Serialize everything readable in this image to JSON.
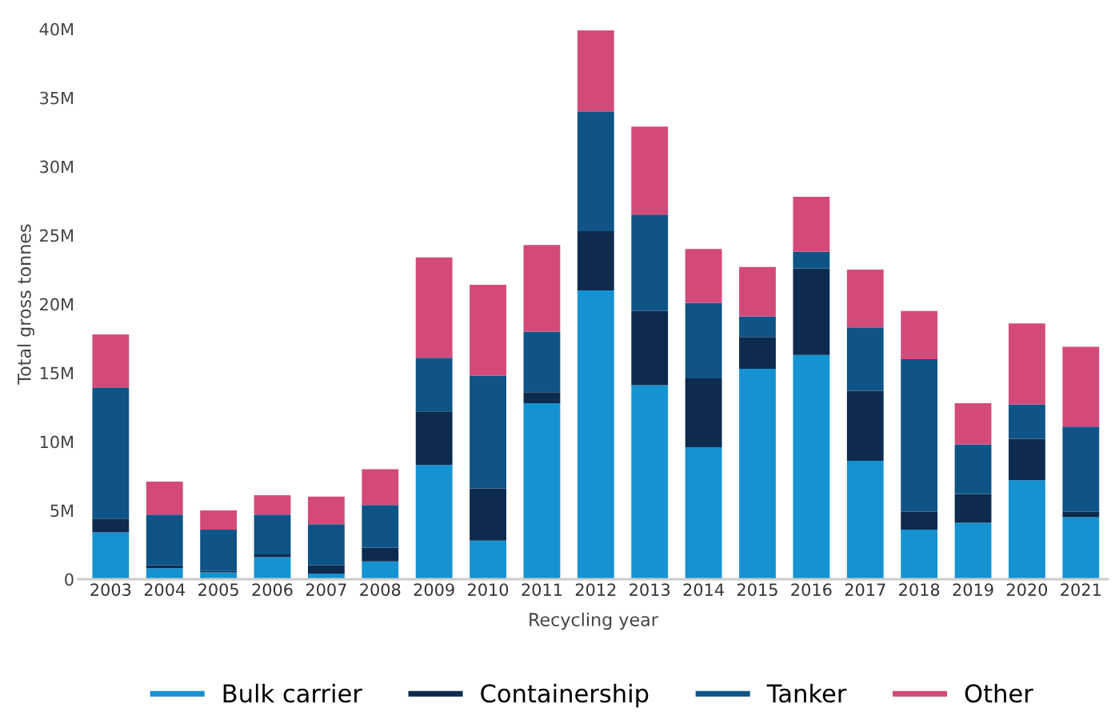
{
  "chart_data": {
    "type": "bar",
    "stacked": true,
    "xlabel": "Recycling year",
    "ylabel": "Total gross tonnes",
    "categories": [
      "2003",
      "2004",
      "2005",
      "2006",
      "2007",
      "2008",
      "2009",
      "2010",
      "2011",
      "2012",
      "2013",
      "2014",
      "2015",
      "2016",
      "2017",
      "2018",
      "2019",
      "2020",
      "2021"
    ],
    "series": [
      {
        "name": "Bulk carrier",
        "color": "#1592d2",
        "values": [
          3.4,
          0.8,
          0.5,
          1.6,
          0.4,
          1.3,
          8.3,
          2.8,
          12.8,
          21.0,
          14.1,
          9.6,
          15.3,
          16.3,
          8.6,
          3.6,
          4.1,
          7.2,
          4.5
        ]
      },
      {
        "name": "Containership",
        "color": "#0d2b4e",
        "values": [
          1.0,
          0.2,
          0.1,
          0.2,
          0.6,
          1.0,
          3.9,
          3.8,
          0.8,
          4.3,
          5.4,
          5.0,
          2.3,
          6.3,
          5.1,
          1.3,
          2.1,
          3.0,
          0.4
        ]
      },
      {
        "name": "Tanker",
        "color": "#0e5486",
        "values": [
          9.5,
          3.7,
          3.0,
          2.9,
          3.0,
          3.1,
          3.9,
          8.2,
          4.4,
          8.7,
          7.0,
          5.5,
          1.5,
          1.2,
          4.6,
          11.1,
          3.6,
          2.5,
          6.2
        ]
      },
      {
        "name": "Other",
        "color": "#d34a7a",
        "values": [
          3.9,
          2.4,
          1.4,
          1.4,
          2.0,
          2.6,
          7.3,
          6.6,
          6.3,
          5.9,
          6.4,
          3.9,
          3.6,
          4.0,
          4.2,
          3.5,
          3.0,
          5.9,
          5.8
        ]
      }
    ],
    "ylim": [
      0,
      40
    ],
    "yticks": [
      0,
      {
        "value": 5,
        "label": "5M"
      },
      {
        "value": 10,
        "label": "10M"
      },
      {
        "value": 15,
        "label": "15M"
      },
      {
        "value": 20,
        "label": "20M"
      },
      {
        "value": 25,
        "label": "25M"
      },
      {
        "value": 30,
        "label": "30M"
      },
      {
        "value": 35,
        "label": "35M"
      },
      {
        "value": 40,
        "label": "40M"
      }
    ],
    "grid": false,
    "legend": "bottom"
  }
}
